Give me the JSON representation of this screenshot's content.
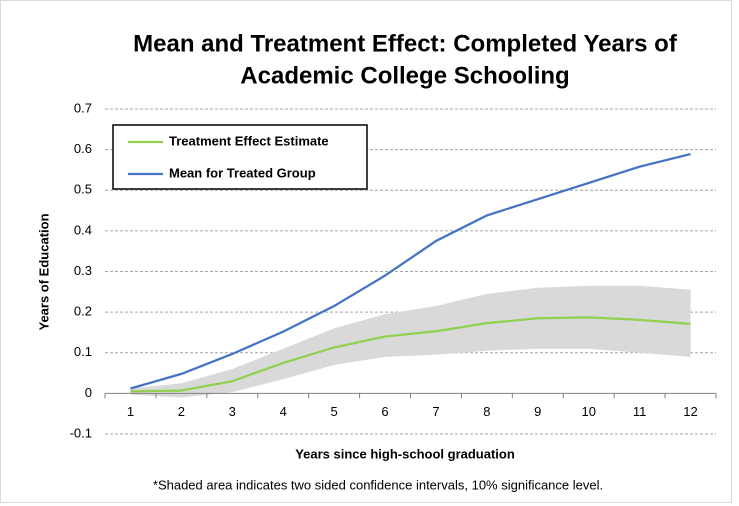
{
  "chart_data": {
    "type": "line",
    "title": [
      "Mean and Treatment Effect: Completed Years of",
      "Academic College  Schooling"
    ],
    "x_label": "Years since high-school graduation",
    "y_label": "Years of Education",
    "annotation": "*Shaded area indicates two sided confidence intervals, 10% significance level.",
    "categories": [
      1,
      2,
      3,
      4,
      5,
      6,
      7,
      8,
      9,
      10,
      11,
      12
    ],
    "series": [
      {
        "name": "Treatment Effect Estimate",
        "color": "#92d050",
        "values": [
          0.005,
          0.007,
          0.03,
          0.075,
          0.113,
          0.14,
          0.153,
          0.173,
          0.185,
          0.187,
          0.181,
          0.171
        ]
      },
      {
        "name": "Mean for Treated Group",
        "color": "#4472c4",
        "values": [
          0.012,
          0.048,
          0.097,
          0.152,
          0.215,
          0.29,
          0.375,
          0.438,
          0.478,
          0.518,
          0.558,
          0.589
        ]
      }
    ],
    "band": {
      "color": "#d9d9d9",
      "upper": [
        0.012,
        0.025,
        0.06,
        0.11,
        0.16,
        0.195,
        0.215,
        0.245,
        0.26,
        0.265,
        0.265,
        0.255
      ],
      "lower": [
        -0.003,
        -0.01,
        0.003,
        0.035,
        0.07,
        0.09,
        0.095,
        0.105,
        0.11,
        0.11,
        0.1,
        0.09
      ]
    },
    "ylim": [
      -0.1,
      0.7
    ],
    "yticks": [
      -0.1,
      0,
      0.1,
      0.2,
      0.3,
      0.4,
      0.5,
      0.6,
      0.7
    ],
    "grid": true,
    "legend": "upper-left"
  }
}
